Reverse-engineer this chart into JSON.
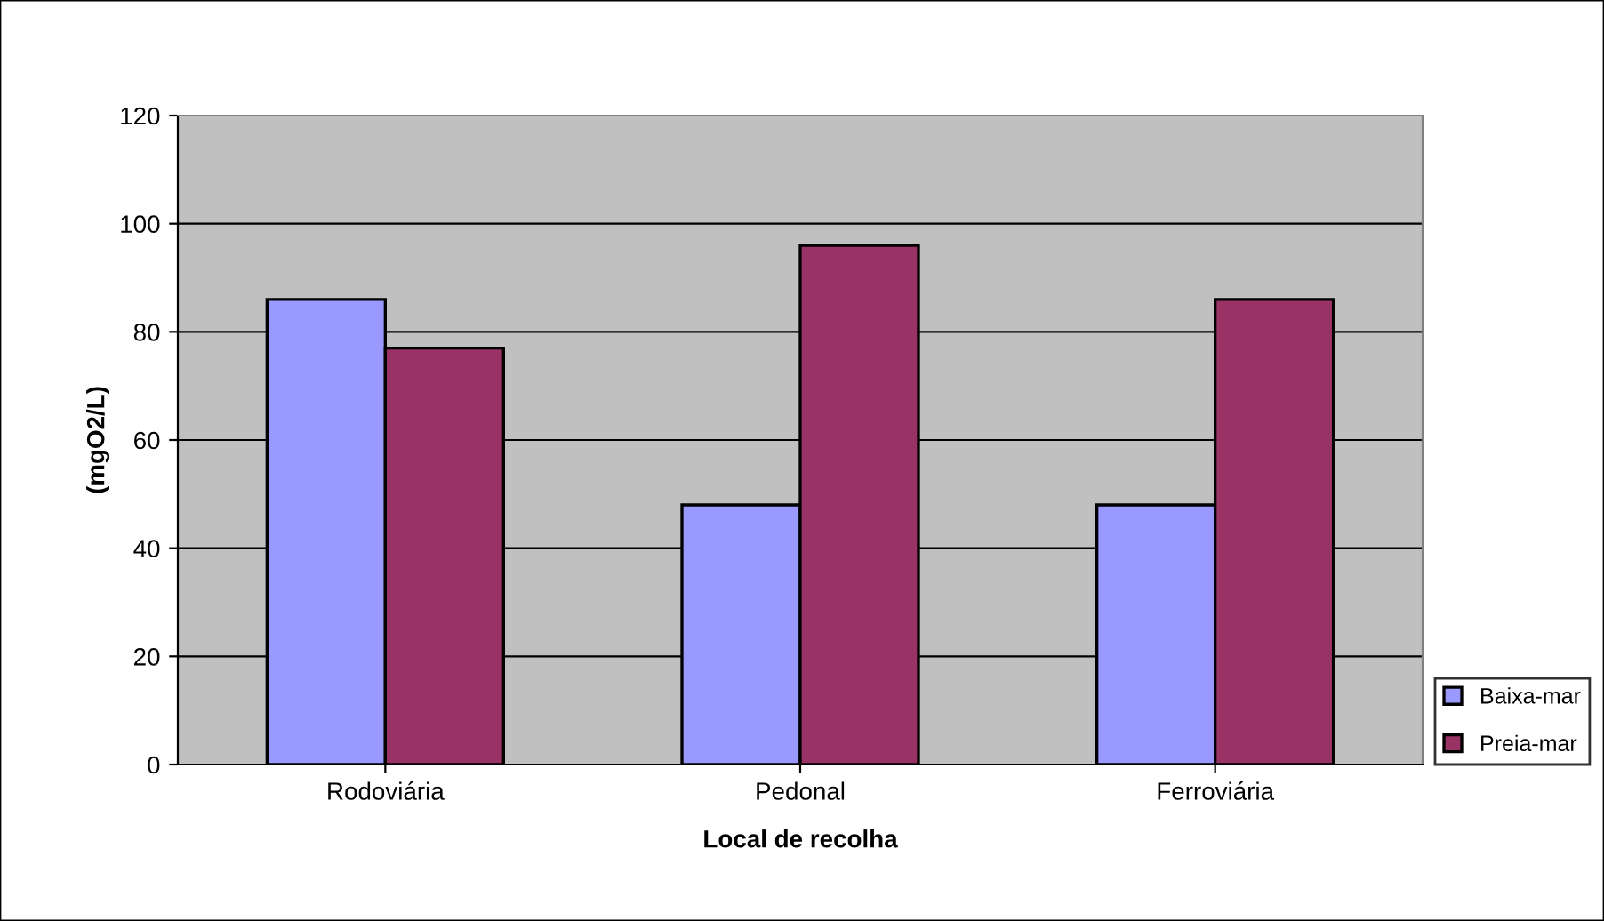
{
  "chart_data": {
    "type": "bar",
    "xlabel": "Local de recolha",
    "ylabel": "(mgO2/L)",
    "categories": [
      "Rodoviária",
      "Pedonal",
      "Ferroviária"
    ],
    "series": [
      {
        "name": "Baixa-mar",
        "color": "#9999ff",
        "values": [
          86,
          48,
          48
        ]
      },
      {
        "name": "Preia-mar",
        "color": "#993366",
        "values": [
          77,
          96,
          86
        ]
      }
    ],
    "ylim": [
      0,
      120
    ],
    "yticks": [
      0,
      20,
      40,
      60,
      80,
      100,
      120
    ],
    "grid": "y",
    "legend": "bottom right"
  }
}
